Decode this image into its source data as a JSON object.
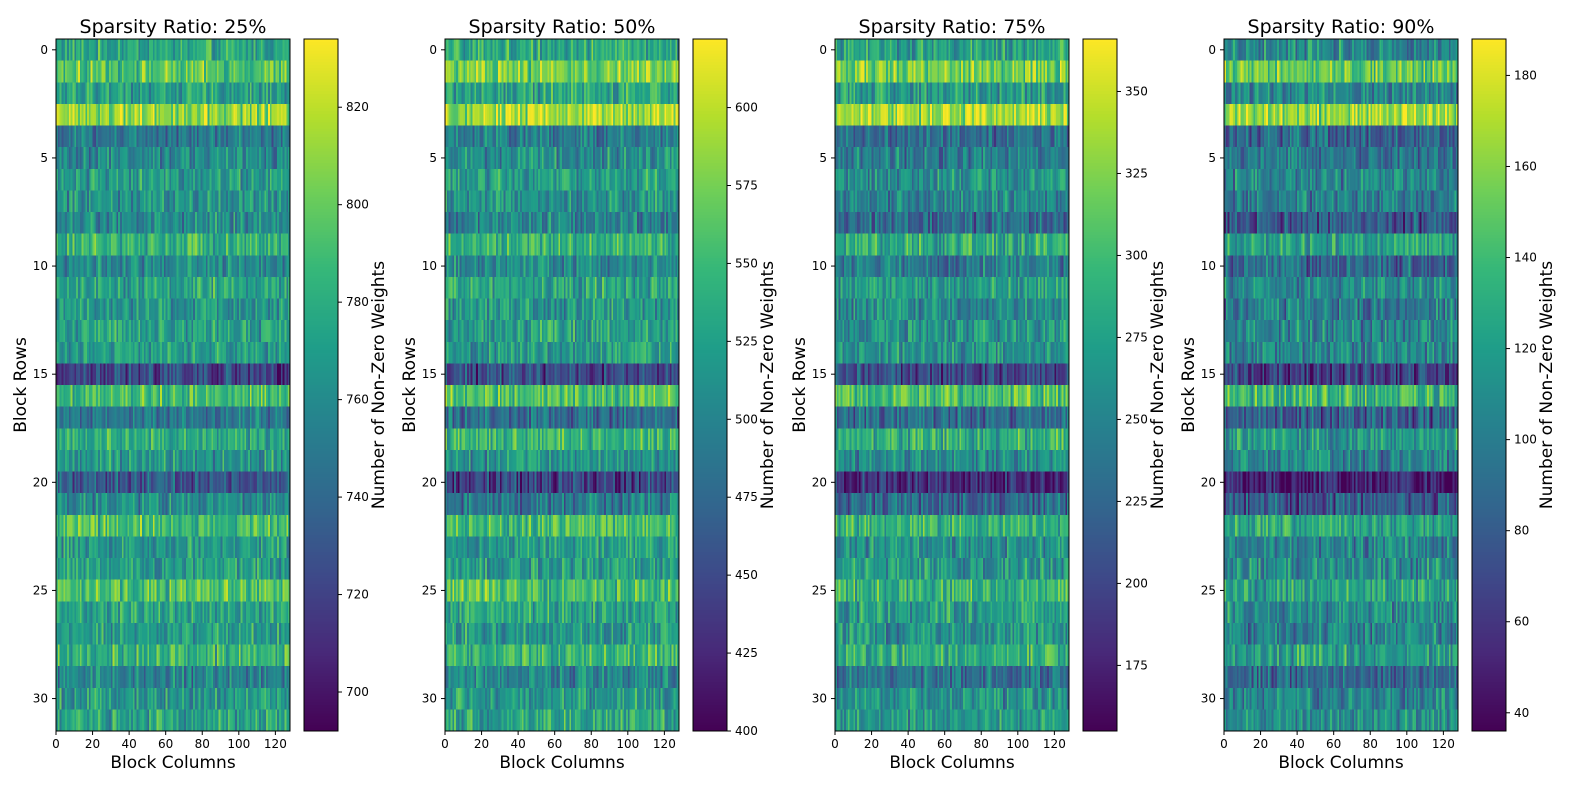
{
  "colors": {
    "viridis": [
      "#440154",
      "#482878",
      "#3e4989",
      "#31688e",
      "#26828e",
      "#1f9e89",
      "#35b779",
      "#6ece58",
      "#b5de2b",
      "#fde725"
    ],
    "axis": "#000000",
    "background": "#ffffff"
  },
  "chart_data": [
    {
      "type": "heatmap",
      "title": "Sparsity Ratio: 25%",
      "xlabel": "Block Columns",
      "ylabel": "Block Rows",
      "colorbar_label": "Number of Non-Zero Weights",
      "rows": 32,
      "cols": 128,
      "xlim": [
        0,
        128
      ],
      "ylim": [
        31.5,
        -0.5
      ],
      "x_ticks": [
        0,
        20,
        40,
        60,
        80,
        100,
        120
      ],
      "y_ticks": [
        0,
        5,
        10,
        15,
        20,
        25,
        30
      ],
      "vmin": 692,
      "vmax": 834,
      "colorbar_ticks": [
        700,
        720,
        740,
        760,
        780,
        800,
        820
      ],
      "row_means": [
        775,
        795,
        772,
        812,
        752,
        760,
        770,
        765,
        760,
        785,
        758,
        775,
        765,
        772,
        770,
        722,
        790,
        748,
        780,
        768,
        732,
        760,
        790,
        770,
        772,
        790,
        775,
        770,
        785,
        755,
        768,
        775
      ],
      "cell_spread": 34
    },
    {
      "type": "heatmap",
      "title": "Sparsity Ratio: 50%",
      "xlabel": "Block Columns",
      "ylabel": "Block Rows",
      "colorbar_label": "Number of Non-Zero Weights",
      "rows": 32,
      "cols": 128,
      "xlim": [
        0,
        128
      ],
      "ylim": [
        31.5,
        -0.5
      ],
      "x_ticks": [
        0,
        20,
        40,
        60,
        80,
        100,
        120
      ],
      "y_ticks": [
        0,
        5,
        10,
        15,
        20,
        25,
        30
      ],
      "vmin": 400,
      "vmax": 622,
      "colorbar_ticks": [
        400,
        425,
        450,
        475,
        500,
        525,
        550,
        575,
        600
      ],
      "row_means": [
        535,
        575,
        530,
        595,
        495,
        510,
        525,
        515,
        500,
        545,
        505,
        530,
        515,
        525,
        520,
        450,
        555,
        480,
        545,
        515,
        445,
        490,
        555,
        520,
        525,
        555,
        530,
        520,
        545,
        500,
        520,
        530
      ],
      "cell_spread": 54
    },
    {
      "type": "heatmap",
      "title": "Sparsity Ratio: 75%",
      "xlabel": "Block Columns",
      "ylabel": "Block Rows",
      "colorbar_label": "Number of Non-Zero Weights",
      "rows": 32,
      "cols": 128,
      "xlim": [
        0,
        128
      ],
      "ylim": [
        31.5,
        -0.5
      ],
      "x_ticks": [
        0,
        20,
        40,
        60,
        80,
        100,
        120
      ],
      "y_ticks": [
        0,
        5,
        10,
        15,
        20,
        25,
        30
      ],
      "vmin": 155,
      "vmax": 366,
      "colorbar_ticks": [
        175,
        200,
        225,
        250,
        275,
        300,
        325,
        350
      ],
      "row_means": [
        275,
        320,
        270,
        340,
        235,
        245,
        262,
        250,
        228,
        285,
        242,
        270,
        255,
        262,
        262,
        200,
        300,
        230,
        285,
        258,
        180,
        225,
        290,
        262,
        265,
        292,
        270,
        262,
        282,
        238,
        262,
        270
      ],
      "cell_spread": 52
    },
    {
      "type": "heatmap",
      "title": "Sparsity Ratio: 90%",
      "xlabel": "Block Columns",
      "ylabel": "Block Rows",
      "colorbar_label": "Number of Non-Zero Weights",
      "rows": 32,
      "cols": 128,
      "xlim": [
        0,
        128
      ],
      "ylim": [
        31.5,
        -0.5
      ],
      "x_ticks": [
        0,
        20,
        40,
        60,
        80,
        100,
        120
      ],
      "y_ticks": [
        0,
        5,
        10,
        15,
        20,
        25,
        30
      ],
      "vmin": 36,
      "vmax": 188,
      "colorbar_ticks": [
        40,
        60,
        80,
        100,
        120,
        140,
        160,
        180
      ],
      "row_means": [
        110,
        150,
        108,
        165,
        85,
        95,
        105,
        98,
        75,
        118,
        88,
        108,
        98,
        105,
        105,
        65,
        135,
        80,
        118,
        102,
        48,
        78,
        125,
        105,
        108,
        125,
        110,
        102,
        120,
        85,
        105,
        110
      ],
      "cell_spread": 40
    }
  ]
}
